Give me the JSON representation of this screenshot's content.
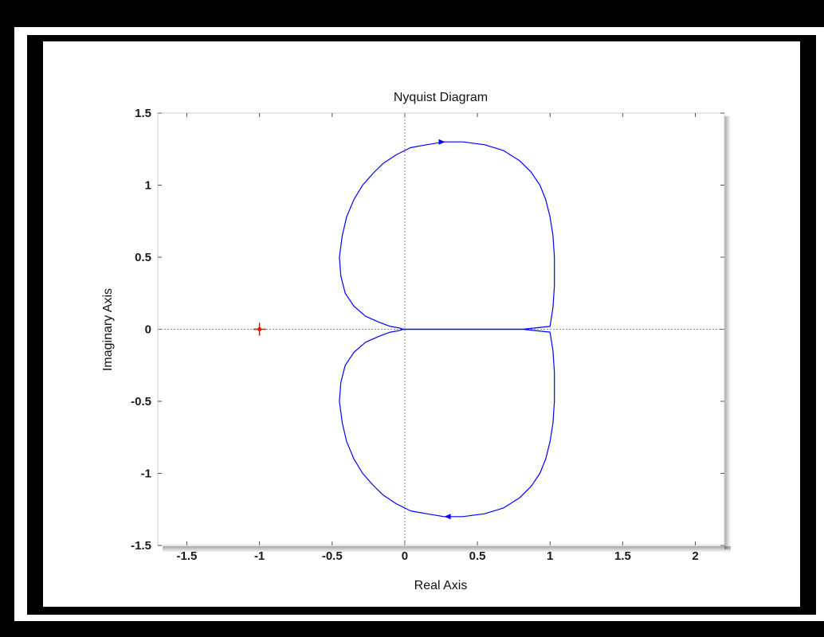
{
  "chart_data": {
    "type": "line",
    "title": "Nyquist Diagram",
    "xlabel": "Real Axis",
    "ylabel": "Imaginary Axis",
    "xlim": [
      -1.7,
      2.2
    ],
    "ylim": [
      -1.5,
      1.5
    ],
    "xticks": [
      -1.5,
      -1,
      -0.5,
      0,
      0.5,
      1,
      1.5,
      2
    ],
    "xtick_labels": [
      "-1.5",
      "-1",
      "-0.5",
      "0",
      "0.5",
      "1",
      "1.5",
      "2"
    ],
    "yticks": [
      1.5,
      1,
      0.5,
      0,
      -0.5,
      -1,
      -1.5
    ],
    "ytick_labels": [
      "1.5",
      "1",
      "0.5",
      "0",
      "-0.5",
      "-1",
      "-1.5"
    ],
    "grid": false,
    "colors": {
      "curve": "#0000ff",
      "critical_point": "#ff0000",
      "zero_lines": "#8a8a8a"
    },
    "critical_point": {
      "x": -1,
      "y": 0
    },
    "series": [
      {
        "x": [
          0.0,
          0.01,
          0.04,
          0.09,
          0.16,
          0.25,
          0.36,
          0.49,
          0.64,
          0.81,
          1.0,
          1.02,
          1.03,
          1.03,
          1.02,
          1.0,
          0.97,
          0.93,
          0.87,
          0.79,
          0.68,
          0.55,
          0.4,
          0.27,
          0.15,
          0.04,
          -0.06,
          -0.15,
          -0.22,
          -0.29,
          -0.35,
          -0.4,
          -0.43,
          -0.45,
          -0.44,
          -0.41,
          -0.35,
          -0.27,
          -0.18,
          -0.1,
          -0.04,
          -0.01,
          0.0
        ],
        "y": [
          0.0,
          0.0,
          0.0,
          0.0,
          0.0,
          0.0,
          0.0,
          0.0,
          0.0,
          0.0,
          0.02,
          0.15,
          0.3,
          0.5,
          0.65,
          0.78,
          0.9,
          1.0,
          1.09,
          1.17,
          1.24,
          1.28,
          1.3,
          1.3,
          1.28,
          1.26,
          1.21,
          1.15,
          1.08,
          1.0,
          0.9,
          0.78,
          0.65,
          0.5,
          0.37,
          0.25,
          0.16,
          0.09,
          0.05,
          0.02,
          0.01,
          0.0,
          0.0
        ]
      },
      {
        "x": [
          0.0,
          0.01,
          0.04,
          0.09,
          0.16,
          0.25,
          0.36,
          0.49,
          0.64,
          0.81,
          1.0,
          1.02,
          1.03,
          1.03,
          1.02,
          1.0,
          0.97,
          0.93,
          0.87,
          0.79,
          0.68,
          0.55,
          0.4,
          0.27,
          0.15,
          0.04,
          -0.06,
          -0.15,
          -0.22,
          -0.29,
          -0.35,
          -0.4,
          -0.43,
          -0.45,
          -0.44,
          -0.41,
          -0.35,
          -0.27,
          -0.18,
          -0.1,
          -0.04,
          -0.01,
          0.0
        ],
        "y": [
          0.0,
          0.0,
          0.0,
          0.0,
          0.0,
          0.0,
          0.0,
          0.0,
          0.0,
          0.0,
          -0.02,
          -0.15,
          -0.3,
          -0.5,
          -0.65,
          -0.78,
          -0.9,
          -1.0,
          -1.09,
          -1.17,
          -1.24,
          -1.28,
          -1.3,
          -1.3,
          -1.28,
          -1.26,
          -1.21,
          -1.15,
          -1.08,
          -1.0,
          -0.9,
          -0.78,
          -0.65,
          -0.5,
          -0.37,
          -0.25,
          -0.16,
          -0.09,
          -0.05,
          -0.02,
          -0.01,
          0.0,
          0.0
        ]
      }
    ],
    "arrows": [
      {
        "x": 0.25,
        "y": 1.3,
        "direction": "right"
      },
      {
        "x": 0.3,
        "y": -1.3,
        "direction": "left"
      }
    ]
  }
}
